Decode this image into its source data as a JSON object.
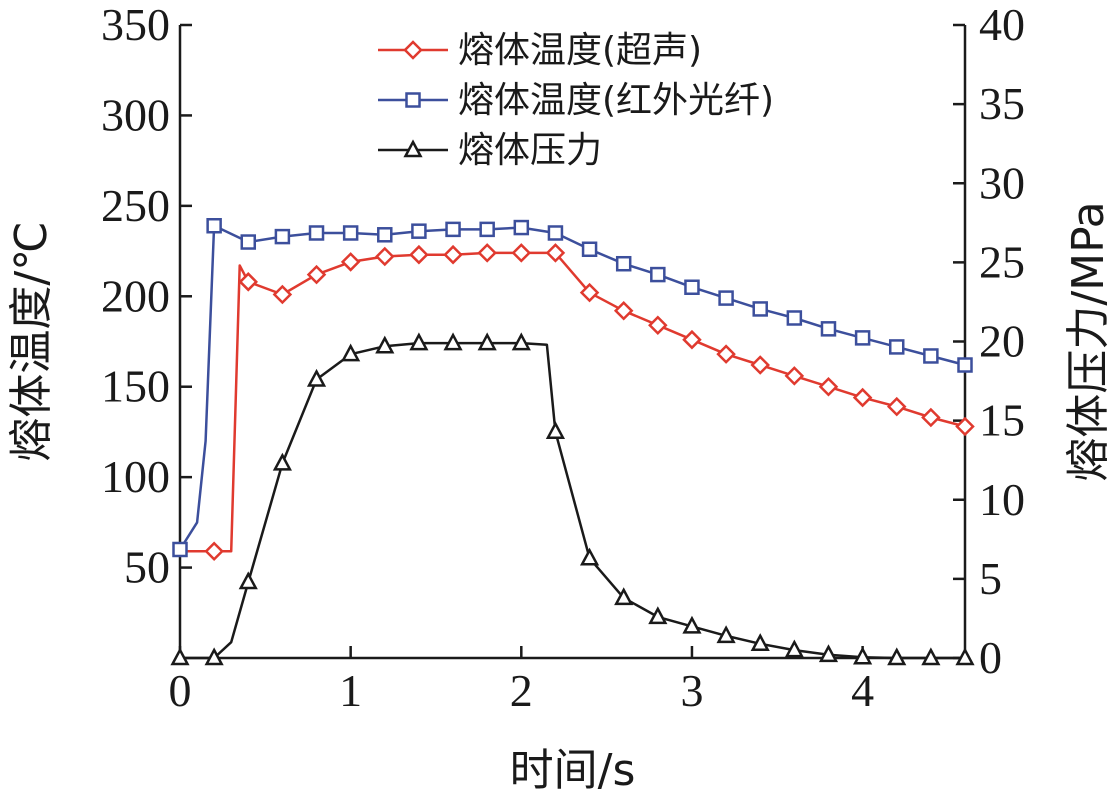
{
  "chart_data": {
    "type": "line",
    "xlabel": "时间/s",
    "ylabel_left": "熔体温度/℃",
    "ylabel_right": "熔体压力/MPa",
    "xlim": [
      0,
      4.6
    ],
    "ylim_left": [
      0,
      350
    ],
    "ylim_right": [
      0,
      40
    ],
    "x_ticks": [
      0,
      1,
      2,
      3,
      4
    ],
    "y_left_ticks": [
      50,
      100,
      150,
      200,
      250,
      300,
      350
    ],
    "y_right_ticks": [
      0,
      5,
      10,
      15,
      20,
      25,
      30,
      35,
      40
    ],
    "legend_position": "top-center",
    "grid": false,
    "series": [
      {
        "name": "熔体温度(超声)",
        "axis": "left",
        "color": "#e03a2f",
        "marker": "diamond",
        "points": [
          [
            0,
            59
          ],
          [
            0.2,
            59
          ],
          [
            0.3,
            59
          ],
          [
            0.35,
            217
          ],
          [
            0.4,
            208
          ],
          [
            0.6,
            201
          ],
          [
            0.8,
            212
          ],
          [
            1.0,
            219
          ],
          [
            1.2,
            222
          ],
          [
            1.4,
            223
          ],
          [
            1.6,
            223
          ],
          [
            1.8,
            224
          ],
          [
            2.0,
            224
          ],
          [
            2.2,
            224
          ],
          [
            2.4,
            202
          ],
          [
            2.6,
            192
          ],
          [
            2.8,
            184
          ],
          [
            3.0,
            176
          ],
          [
            3.2,
            168
          ],
          [
            3.4,
            162
          ],
          [
            3.6,
            156
          ],
          [
            3.8,
            150
          ],
          [
            4.0,
            144
          ],
          [
            4.2,
            139
          ],
          [
            4.4,
            133
          ],
          [
            4.6,
            128
          ]
        ],
        "marker_x": [
          0.2,
          0.4,
          0.6,
          0.8,
          1.0,
          1.2,
          1.4,
          1.6,
          1.8,
          2.0,
          2.2,
          2.4,
          2.6,
          2.8,
          3.0,
          3.2,
          3.4,
          3.6,
          3.8,
          4.0,
          4.2,
          4.4,
          4.6
        ]
      },
      {
        "name": "熔体温度(红外光纤)",
        "axis": "left",
        "color": "#3c4f9c",
        "marker": "square",
        "points": [
          [
            0,
            60
          ],
          [
            0.1,
            75
          ],
          [
            0.15,
            120
          ],
          [
            0.2,
            239
          ],
          [
            0.4,
            230
          ],
          [
            0.6,
            233
          ],
          [
            0.8,
            235
          ],
          [
            1.0,
            235
          ],
          [
            1.2,
            234
          ],
          [
            1.4,
            236
          ],
          [
            1.6,
            237
          ],
          [
            1.8,
            237
          ],
          [
            2.0,
            238
          ],
          [
            2.2,
            235
          ],
          [
            2.4,
            226
          ],
          [
            2.6,
            218
          ],
          [
            2.8,
            212
          ],
          [
            3.0,
            205
          ],
          [
            3.2,
            199
          ],
          [
            3.4,
            193
          ],
          [
            3.6,
            188
          ],
          [
            3.8,
            182
          ],
          [
            4.0,
            177
          ],
          [
            4.2,
            172
          ],
          [
            4.4,
            167
          ],
          [
            4.6,
            162
          ]
        ],
        "marker_x": [
          0,
          0.2,
          0.4,
          0.6,
          0.8,
          1.0,
          1.2,
          1.4,
          1.6,
          1.8,
          2.0,
          2.2,
          2.4,
          2.6,
          2.8,
          3.0,
          3.2,
          3.4,
          3.6,
          3.8,
          4.0,
          4.2,
          4.4,
          4.6
        ]
      },
      {
        "name": "熔体压力",
        "axis": "right",
        "color": "#1a1a1a",
        "marker": "triangle",
        "points": [
          [
            0,
            0
          ],
          [
            0.2,
            0
          ],
          [
            0.3,
            1
          ],
          [
            0.4,
            4.8
          ],
          [
            0.6,
            12.3
          ],
          [
            0.8,
            17.6
          ],
          [
            1.0,
            19.2
          ],
          [
            1.2,
            19.7
          ],
          [
            1.4,
            19.9
          ],
          [
            1.6,
            19.9
          ],
          [
            1.8,
            19.9
          ],
          [
            2.0,
            19.9
          ],
          [
            2.15,
            19.8
          ],
          [
            2.2,
            14.3
          ],
          [
            2.4,
            6.3
          ],
          [
            2.6,
            3.8
          ],
          [
            2.8,
            2.6
          ],
          [
            3.0,
            2.0
          ],
          [
            3.2,
            1.4
          ],
          [
            3.4,
            0.9
          ],
          [
            3.6,
            0.5
          ],
          [
            3.8,
            0.2
          ],
          [
            4.0,
            0.05
          ],
          [
            4.2,
            0
          ],
          [
            4.4,
            0
          ],
          [
            4.6,
            0
          ]
        ],
        "marker_x": [
          0,
          0.2,
          0.4,
          0.6,
          0.8,
          1.0,
          1.2,
          1.4,
          1.6,
          1.8,
          2.0,
          2.2,
          2.4,
          2.6,
          2.8,
          3.0,
          3.2,
          3.4,
          3.6,
          3.8,
          4.0,
          4.2,
          4.4,
          4.6
        ]
      }
    ]
  }
}
